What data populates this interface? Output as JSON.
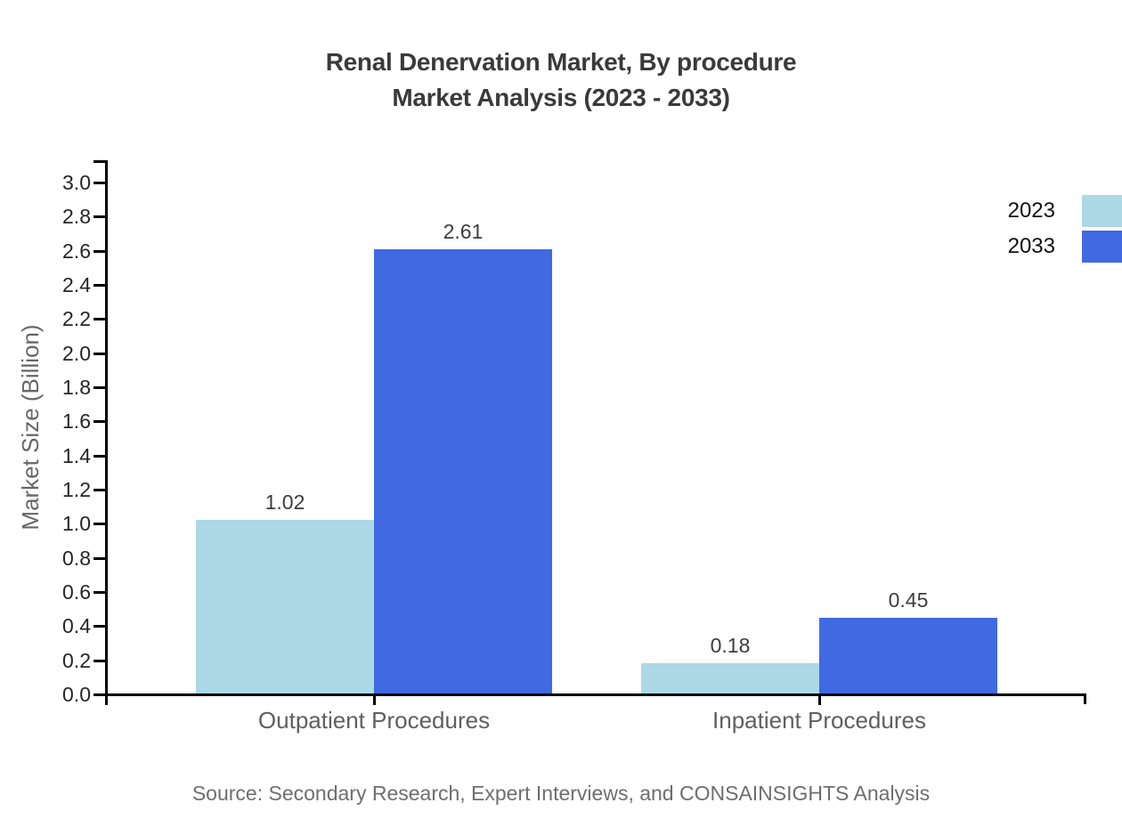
{
  "title": {
    "line1": "Renal Denervation Market, By procedure",
    "line2": "Market Analysis (2023 - 2033)"
  },
  "source": "Source: Secondary Research, Expert Interviews, and CONSAINSIGHTS Analysis",
  "chart_data": {
    "type": "bar",
    "title": "Renal Denervation Market, By procedure Market Analysis (2023 - 2033)",
    "categories": [
      "Outpatient Procedures",
      "Inpatient Procedures"
    ],
    "series": [
      {
        "name": "2023",
        "color": "#ADD8E6",
        "values": [
          1.02,
          0.18
        ]
      },
      {
        "name": "2033",
        "color": "#4169E1",
        "values": [
          2.61,
          0.45
        ]
      }
    ],
    "value_labels": {
      "2023": [
        "1.02",
        "0.18"
      ],
      "2033": [
        "2.61",
        "0.45"
      ]
    },
    "xlabel": "",
    "ylabel": "Market Size (Billion)",
    "ylim": [
      0.0,
      3.0
    ],
    "ytick_step": 0.2,
    "yticks": [
      "0.0",
      "0.2",
      "0.4",
      "0.6",
      "0.8",
      "1.0",
      "1.2",
      "1.4",
      "1.6",
      "1.8",
      "2.0",
      "2.2",
      "2.4",
      "2.6",
      "2.8",
      "3.0"
    ],
    "grid": false,
    "legend_position": "top-right",
    "axis_color": "#000000",
    "text_colors": {
      "title": "#3a3a3a",
      "tick_labels": "#262626",
      "category_labels": "#5f5f5f",
      "value_labels": "#3d3d3d",
      "source": "#6e6e6e",
      "ylabel": "#666666"
    }
  }
}
